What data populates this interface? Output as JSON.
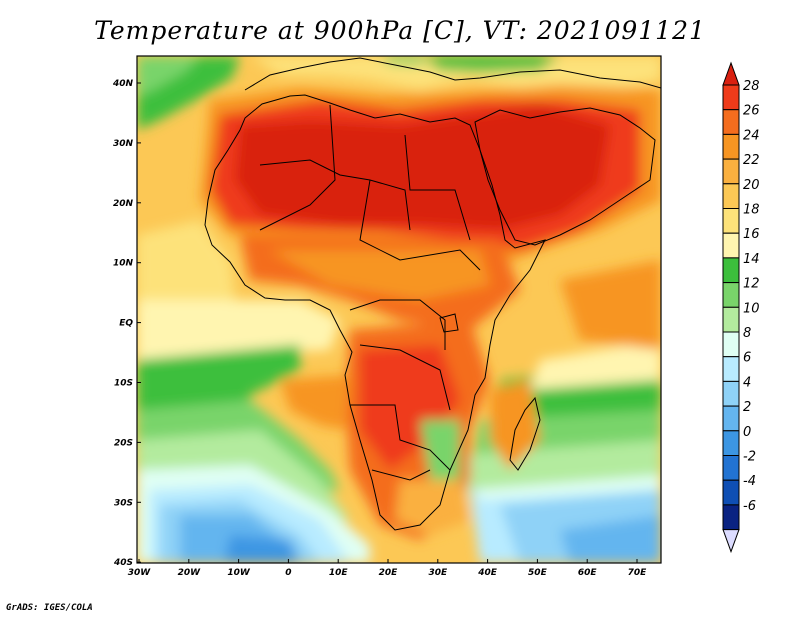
{
  "title": "Temperature at 900hPa [C], VT: 2021091121",
  "credit": "GrADS: IGES/COLA",
  "map": {
    "lon_labels": [
      "30W",
      "20W",
      "10W",
      "0",
      "10E",
      "20E",
      "30E",
      "40E",
      "50E",
      "60E",
      "70E"
    ],
    "lat_labels": [
      "40N",
      "30N",
      "20N",
      "10N",
      "EQ",
      "10S",
      "20S",
      "30S",
      "40S"
    ]
  },
  "colorbar": {
    "labels": [
      "28",
      "26",
      "24",
      "22",
      "20",
      "18",
      "16",
      "14",
      "12",
      "10",
      "8",
      "6",
      "4",
      "2",
      "0",
      "-2",
      "-4",
      "-6"
    ],
    "colors": [
      "#ef3b1a",
      "#f46d1e",
      "#f79522",
      "#fab03f",
      "#fcc855",
      "#fde27a",
      "#fff5b0",
      "#3cbf3c",
      "#79d46a",
      "#b3eb9e",
      "#e0fff4",
      "#b8ebff",
      "#8fd2f7",
      "#64b5ef",
      "#3c96e3",
      "#2273d2",
      "#0f4fb4",
      "#0a2382"
    ],
    "over_color": "#d92010",
    "under_color": "#dcdcff"
  }
}
